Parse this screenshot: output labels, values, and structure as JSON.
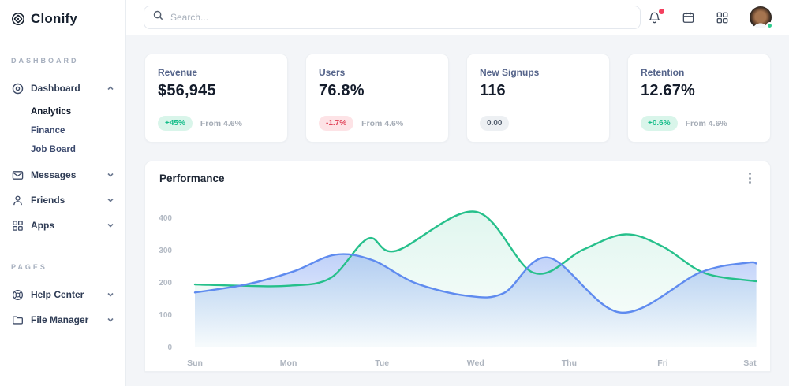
{
  "app": {
    "name": "Clonify"
  },
  "topbar": {
    "search_placeholder": "Search...",
    "icons": [
      "bell",
      "calendar",
      "apps-grid",
      "avatar"
    ],
    "bell_has_notification": true,
    "avatar_status": "online",
    "accent_red": "#f43f5e",
    "accent_green": "#2ecc8f"
  },
  "sidebar": {
    "sections": [
      {
        "label": "DASHBOARD",
        "items": [
          {
            "label": "Dashboard",
            "icon": "disc-icon",
            "expanded": true,
            "children": [
              {
                "label": "Analytics",
                "active": true
              },
              {
                "label": "Finance",
                "active": false
              },
              {
                "label": "Job Board",
                "active": false
              }
            ]
          },
          {
            "label": "Messages",
            "icon": "envelope-icon",
            "expanded": false
          },
          {
            "label": "Friends",
            "icon": "person-icon",
            "expanded": false
          },
          {
            "label": "Apps",
            "icon": "grid-icon",
            "expanded": false
          }
        ]
      },
      {
        "label": "PAGES",
        "items": [
          {
            "label": "Help Center",
            "icon": "lifebuoy-icon",
            "expanded": false
          },
          {
            "label": "File Manager",
            "icon": "folder-icon",
            "expanded": false
          }
        ]
      }
    ]
  },
  "stats": [
    {
      "label": "Revenue",
      "value": "$56,945",
      "badge": "+45%",
      "badge_type": "up",
      "note": "From 4.6%"
    },
    {
      "label": "Users",
      "value": "76.8%",
      "badge": "-1.7%",
      "badge_type": "down",
      "note": "From 4.6%"
    },
    {
      "label": "New Signups",
      "value": "116",
      "badge": "0.00",
      "badge_type": "flat",
      "note": ""
    },
    {
      "label": "Retention",
      "value": "12.67%",
      "badge": "+0.6%",
      "badge_type": "up",
      "note": "From 4.6%"
    }
  ],
  "performance": {
    "title": "Performance"
  },
  "chart_data": {
    "type": "area",
    "title": "Performance",
    "x_labels": [
      "Sun",
      "Mon",
      "Tue",
      "Wed",
      "Thu",
      "Fri",
      "Sat"
    ],
    "y_ticks": [
      0,
      100,
      200,
      300,
      400
    ],
    "ylim": [
      0,
      440
    ],
    "grid": false,
    "legend": "none",
    "series": [
      {
        "name": "series-green",
        "color": "#26c08b",
        "fill_opacity_top": 0.14,
        "points": [
          [
            0,
            195
          ],
          [
            0.5,
            191
          ],
          [
            1,
            191
          ],
          [
            1.45,
            215
          ],
          [
            1.85,
            337
          ],
          [
            2.15,
            299
          ],
          [
            3,
            420
          ],
          [
            3.62,
            231
          ],
          [
            4.15,
            303
          ],
          [
            4.6,
            350
          ],
          [
            5.0,
            312
          ],
          [
            5.45,
            230
          ],
          [
            6,
            205
          ]
        ]
      },
      {
        "name": "series-blue",
        "color": "#5f8bef",
        "fill_opacity_top": 0.4,
        "points": [
          [
            0,
            170
          ],
          [
            0.55,
            195
          ],
          [
            1.05,
            235
          ],
          [
            1.5,
            287
          ],
          [
            1.9,
            270
          ],
          [
            2.35,
            200
          ],
          [
            2.9,
            160
          ],
          [
            3.3,
            168
          ],
          [
            3.78,
            278
          ],
          [
            4.55,
            108
          ],
          [
            5.4,
            232
          ],
          [
            5.9,
            262
          ],
          [
            6,
            260
          ]
        ]
      }
    ]
  }
}
